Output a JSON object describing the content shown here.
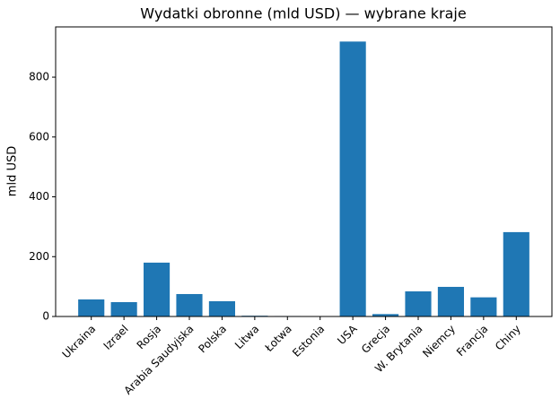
{
  "chart_data": {
    "type": "bar",
    "title": "Wydatki obronne (mld USD) — wybrane kraje",
    "y_label": "mld USD",
    "categories": [
      "Ukraina",
      "Izrael",
      "Rosja",
      "Arabia Saudyjska",
      "Polska",
      "Litwa",
      "Łotwa",
      "Estonia",
      "USA",
      "Grecja",
      "W. Brytania",
      "Niemcy",
      "Francja",
      "Chiny"
    ],
    "values": [
      57,
      48,
      180,
      75,
      51,
      2.5,
      1.6,
      1.4,
      919,
      8,
      84,
      99,
      64,
      282
    ],
    "color": "#1f77b4",
    "ylim": [
      0,
      968
    ],
    "yticks": [
      0,
      200,
      400,
      600,
      800
    ],
    "grid": false
  }
}
